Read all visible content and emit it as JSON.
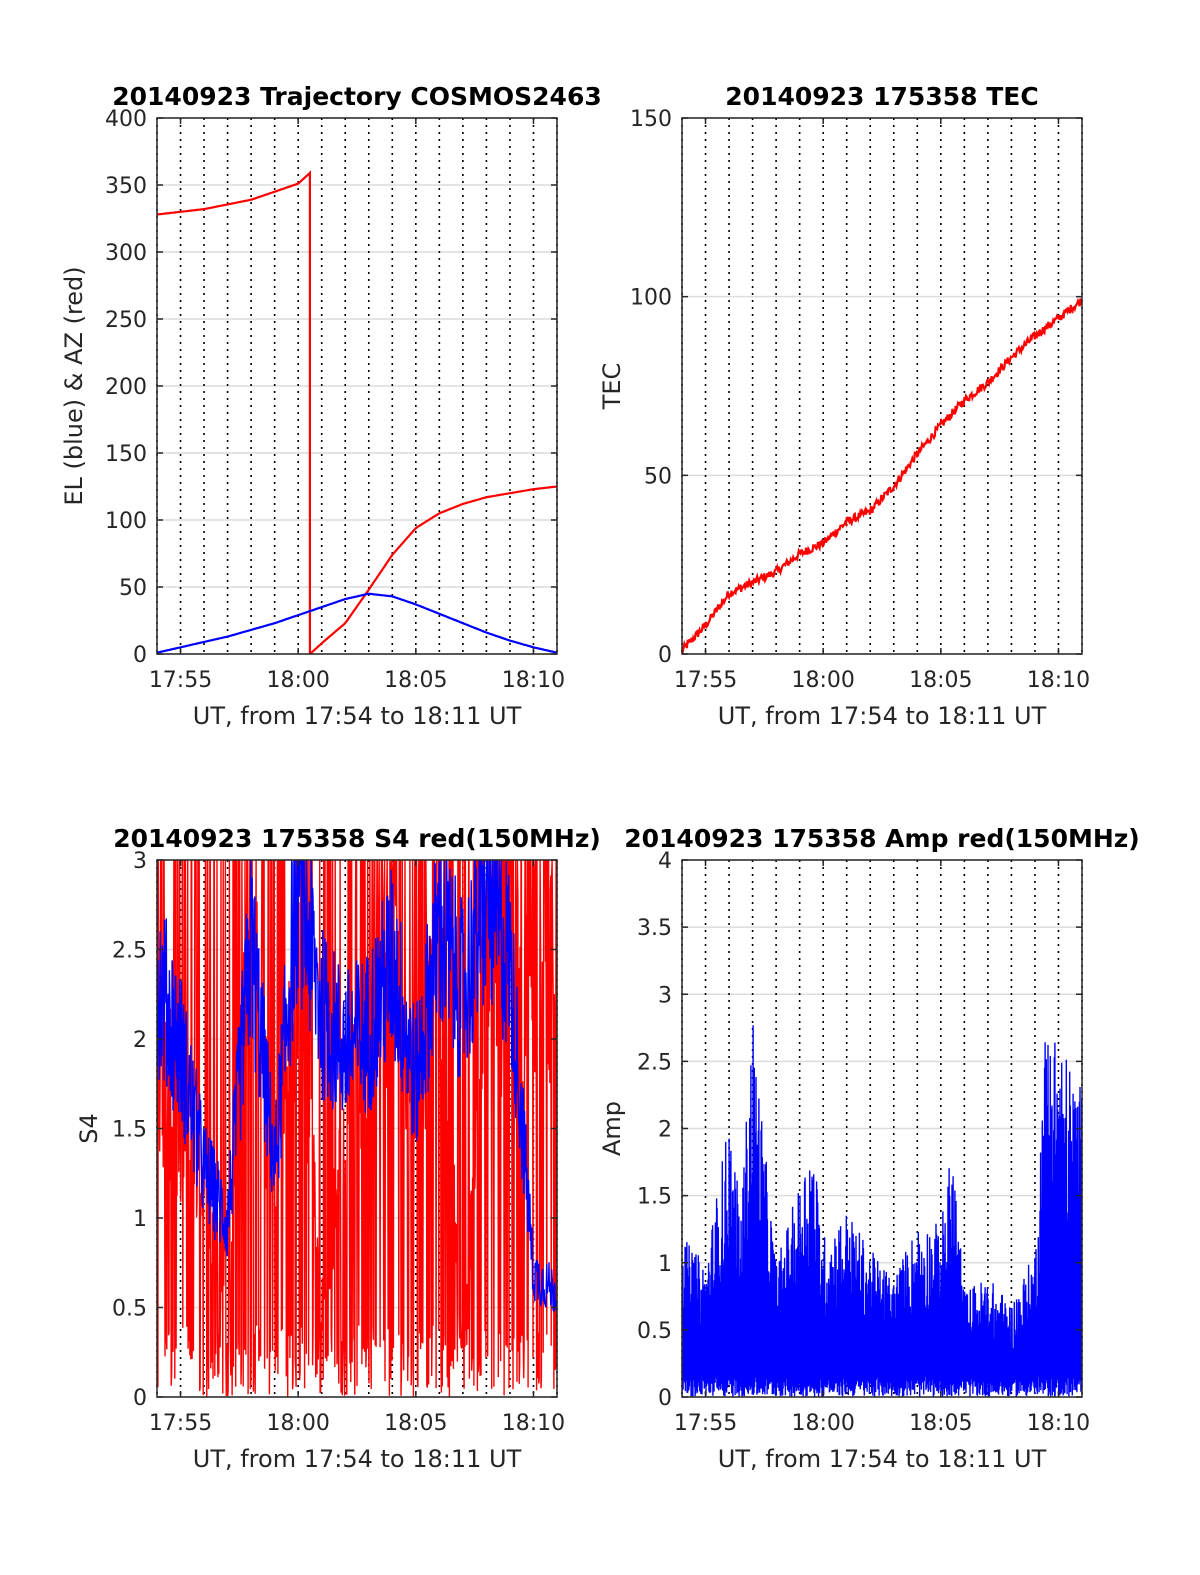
{
  "chart_data": [
    {
      "id": "trajectory",
      "type": "line",
      "title": "20140923 Trajectory COSMOS2463",
      "xlabel": "UT, from 17:54 to 18:11 UT",
      "ylabel": "EL (blue) & AZ (red)",
      "xlim": [
        "17:54",
        "18:11"
      ],
      "ylim": [
        0,
        400
      ],
      "xticks": [
        "17:55",
        "18:00",
        "18:05",
        "18:10"
      ],
      "yticks": [
        "0",
        "50",
        "100",
        "150",
        "200",
        "250",
        "300",
        "350",
        "400"
      ],
      "grid": true,
      "series": [
        {
          "color": "#ff0000",
          "x": [
            "17:54",
            "17:56",
            "17:58",
            "18:00",
            "18:00.5",
            "18:00.5",
            "18:01",
            "18:02",
            "18:03",
            "18:04",
            "18:05",
            "18:06",
            "18:07",
            "18:08",
            "18:09",
            "18:10",
            "18:11"
          ],
          "values": [
            328,
            332,
            339,
            351,
            359,
            0,
            8,
            23,
            48,
            74,
            94,
            105,
            112,
            117,
            120,
            123,
            125
          ]
        },
        {
          "color": "#0000ff",
          "x": [
            "17:54",
            "17:55",
            "17:56",
            "17:57",
            "17:58",
            "17:59",
            "18:00",
            "18:01",
            "18:02",
            "18:03",
            "18:04",
            "18:05",
            "18:06",
            "18:07",
            "18:08",
            "18:09",
            "18:10",
            "18:11"
          ],
          "values": [
            1,
            5,
            9,
            13,
            18,
            23,
            29,
            35,
            41,
            45,
            43,
            37,
            30,
            23,
            16,
            10,
            5,
            1
          ]
        }
      ]
    },
    {
      "id": "tec",
      "type": "line",
      "title": "20140923 175358 TEC",
      "xlabel": "UT, from 17:54 to 18:11 UT",
      "ylabel": "TEC",
      "xlim": [
        "17:54",
        "18:11"
      ],
      "ylim": [
        0,
        150
      ],
      "xticks": [
        "17:55",
        "18:00",
        "18:05",
        "18:10"
      ],
      "yticks": [
        "0",
        "50",
        "100",
        "150"
      ],
      "grid": true,
      "series": [
        {
          "color": "#ff0000",
          "x": [
            "17:54",
            "17:55",
            "17:56",
            "17:57",
            "17:58",
            "17:59",
            "18:00",
            "18:01",
            "18:02",
            "18:03",
            "18:04",
            "18:05",
            "18:06",
            "18:07",
            "18:08",
            "18:09",
            "18:10",
            "18:11"
          ],
          "values": [
            1,
            8,
            17,
            20,
            23,
            28,
            31,
            37,
            40,
            47,
            56,
            64,
            71,
            76,
            83,
            89,
            94,
            99
          ]
        }
      ]
    },
    {
      "id": "s4",
      "type": "line",
      "title": "20140923 175358 S4 red(150MHz)",
      "xlabel": "UT, from 17:54 to 18:11 UT",
      "ylabel": "S4",
      "xlim": [
        "17:54",
        "18:11"
      ],
      "ylim": [
        0,
        3
      ],
      "xticks": [
        "17:55",
        "18:00",
        "18:05",
        "18:10"
      ],
      "yticks": [
        "0",
        "0.5",
        "1",
        "1.5",
        "2",
        "2.5",
        "3"
      ],
      "grid": true,
      "series": [
        {
          "color": "#ff0000",
          "x": [
            "17:54",
            "17:55",
            "17:56",
            "17:57",
            "17:58",
            "17:59",
            "18:00",
            "18:01",
            "18:02",
            "18:03",
            "18:04",
            "18:05",
            "18:06",
            "18:07",
            "18:08",
            "18:09",
            "18:10",
            "18:11"
          ],
          "values": [
            2.2,
            1.8,
            1.4,
            0.8,
            3.0,
            1.2,
            3.0,
            0.6,
            1.7,
            2.3,
            3.0,
            2.1,
            3.0,
            0.2,
            3.0,
            2.4,
            3.0,
            2.8
          ]
        },
        {
          "color": "#0000ff",
          "x": [
            "17:54",
            "17:55",
            "17:56",
            "17:57",
            "17:58",
            "17:59",
            "18:00",
            "18:01",
            "18:02",
            "18:03",
            "18:04",
            "18:05",
            "18:06",
            "18:07",
            "18:08",
            "18:09",
            "18:10",
            "18:11"
          ],
          "values": [
            2.4,
            2.0,
            1.3,
            1.0,
            2.6,
            1.3,
            3.0,
            2.2,
            2.0,
            2.1,
            2.5,
            1.8,
            2.7,
            2.3,
            2.9,
            2.5,
            0.7,
            0.6
          ]
        }
      ]
    },
    {
      "id": "amp",
      "type": "line",
      "title": "20140923 175358 Amp red(150MHz)",
      "xlabel": "UT, from 17:54 to 18:11 UT",
      "ylabel": "Amp",
      "xlim": [
        "17:54",
        "18:11"
      ],
      "ylim": [
        0,
        4
      ],
      "xticks": [
        "17:55",
        "18:00",
        "18:05",
        "18:10"
      ],
      "yticks": [
        "0",
        "0.5",
        "1",
        "1.5",
        "2",
        "2.5",
        "3",
        "3.5",
        "4"
      ],
      "grid": true,
      "series": [
        {
          "color": "#0000ff",
          "x": [
            "17:54",
            "17:55",
            "17:56",
            "17:56.5",
            "17:57",
            "17:57.5",
            "17:58",
            "17:59",
            "17:59.5",
            "18:00",
            "18:01",
            "18:02",
            "18:03",
            "18:04",
            "18:05",
            "18:05.5",
            "18:06",
            "18:07",
            "18:08",
            "18:09",
            "18:09.5",
            "18:10",
            "18:11"
          ],
          "values": [
            1.2,
            1.0,
            2.1,
            1.4,
            2.9,
            1.9,
            1.0,
            1.6,
            2.0,
            1.2,
            1.4,
            1.1,
            0.9,
            1.3,
            1.3,
            1.9,
            0.8,
            0.9,
            0.7,
            1.1,
            3.0,
            2.7,
            2.3
          ]
        }
      ]
    }
  ]
}
